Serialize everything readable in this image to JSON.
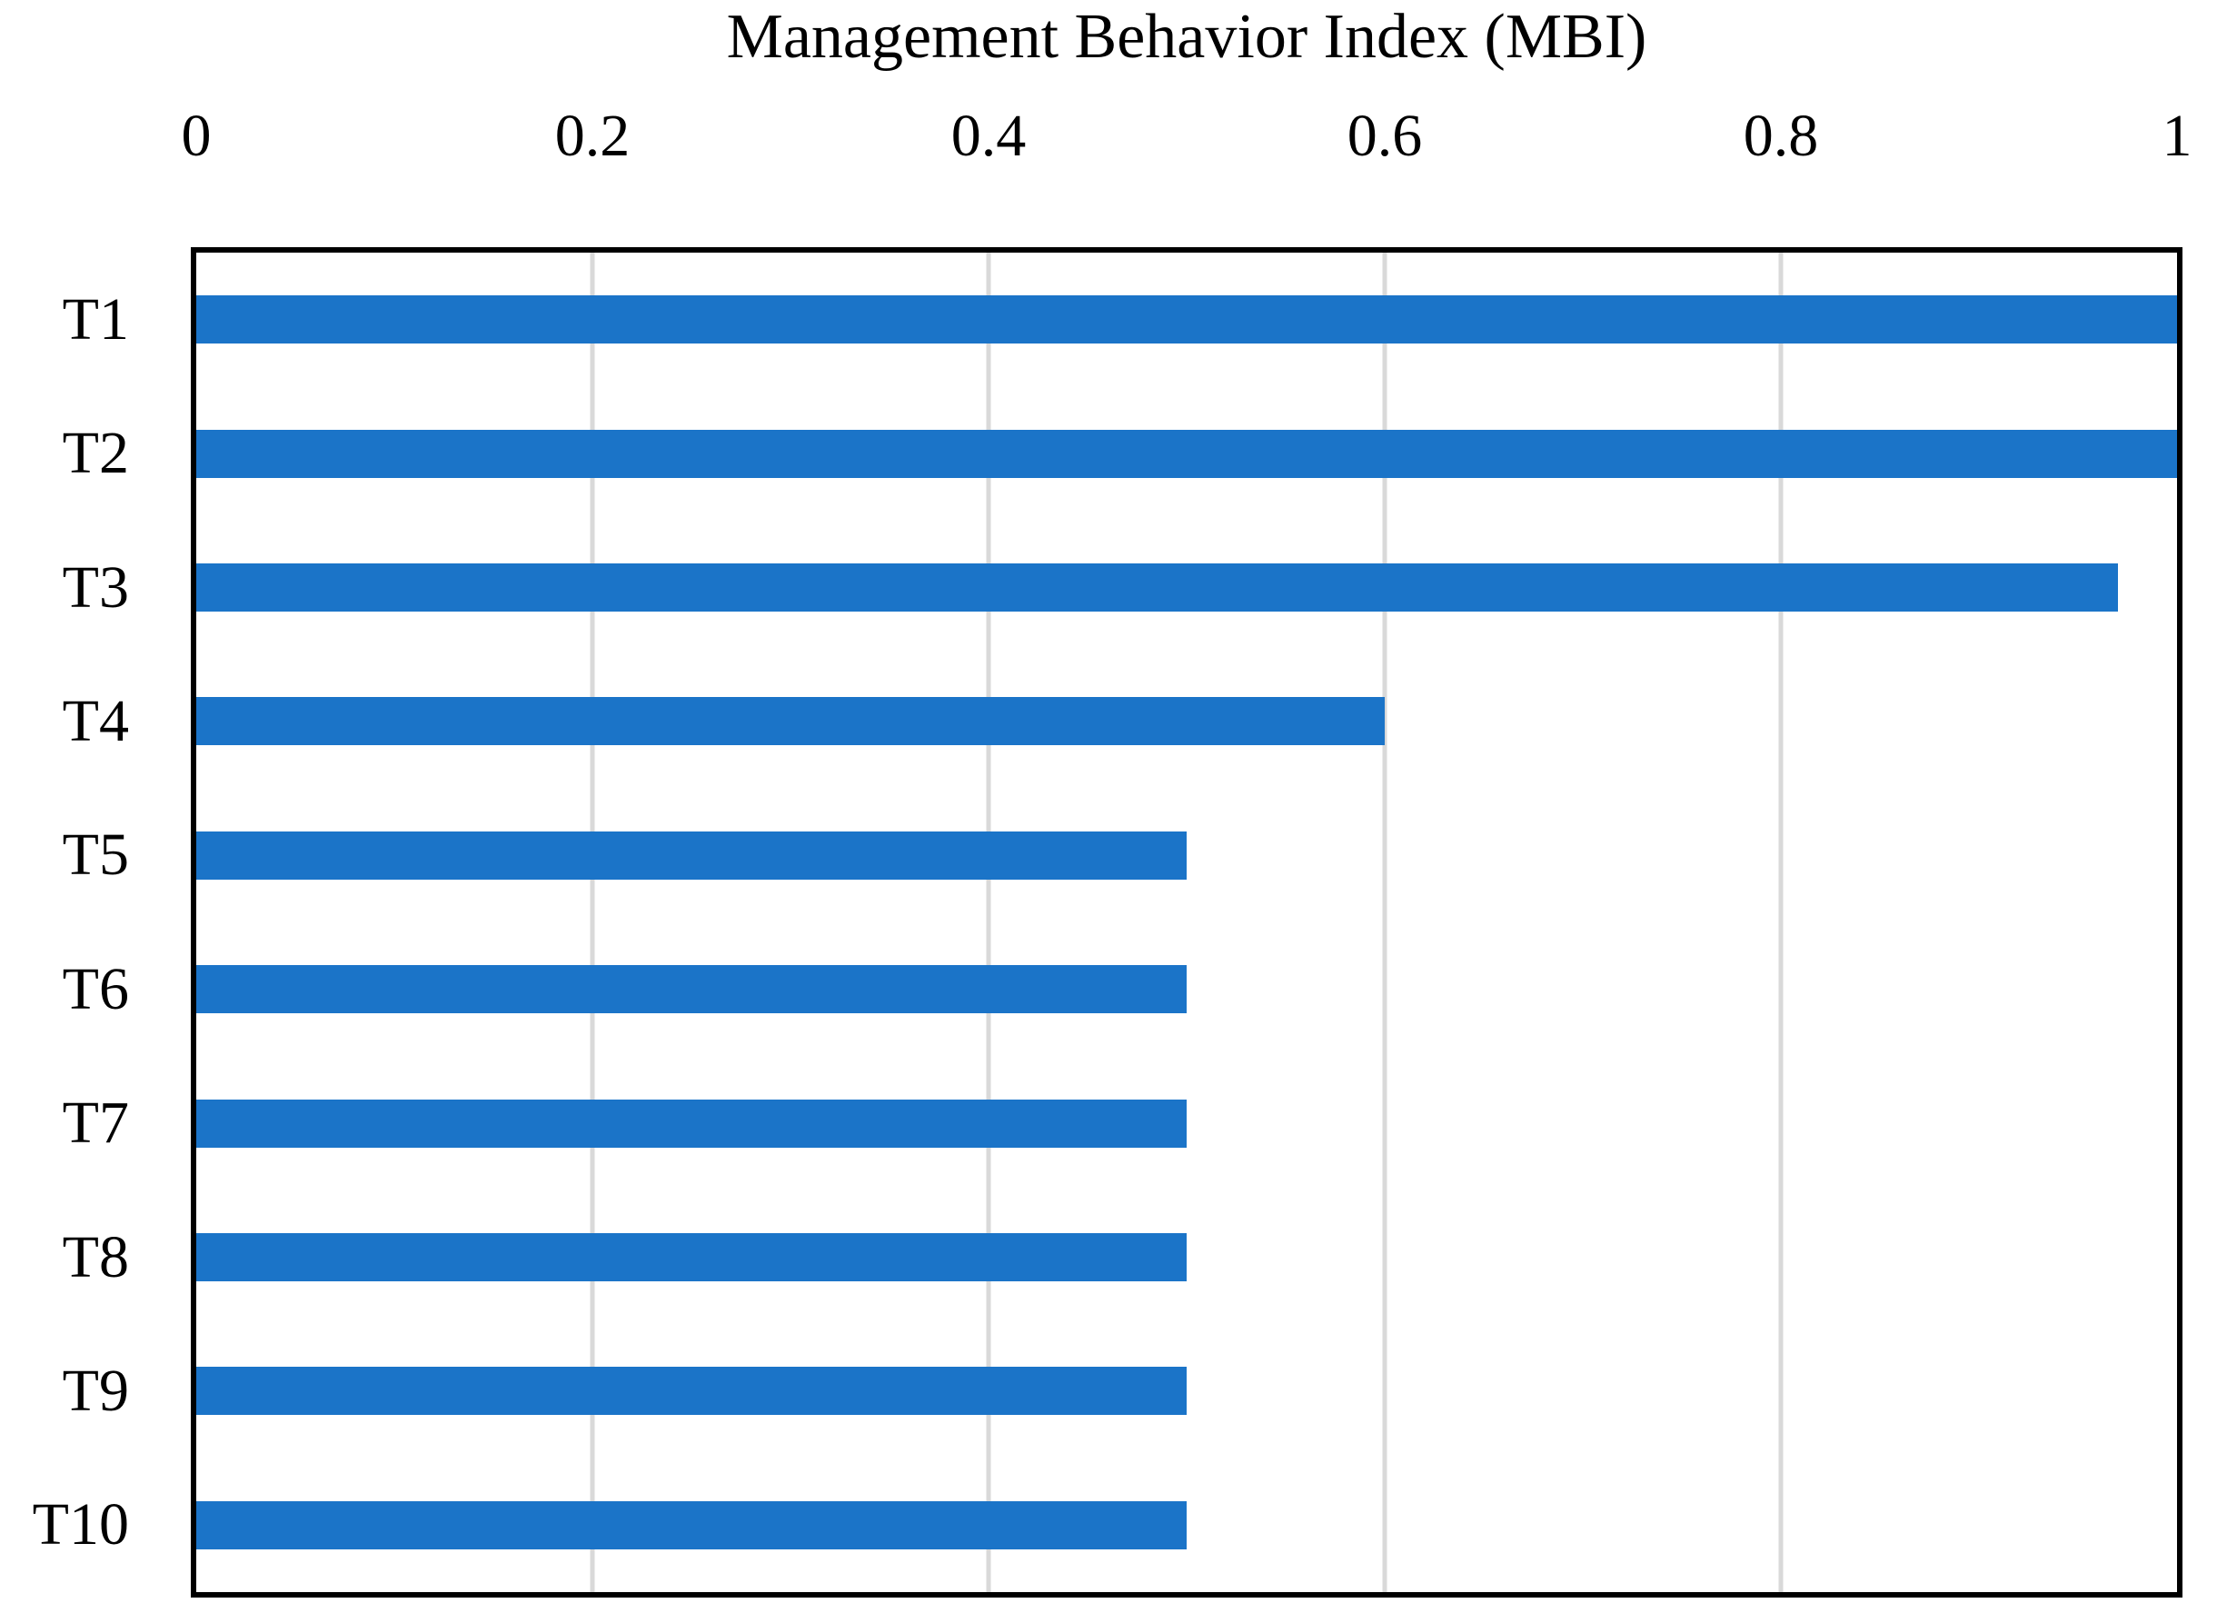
{
  "chart_data": {
    "type": "bar",
    "orientation": "horizontal",
    "title": "Management Behavior Index (MBI)",
    "categories": [
      "T1",
      "T2",
      "T3",
      "T4",
      "T5",
      "T6",
      "T7",
      "T8",
      "T9",
      "T10"
    ],
    "values": [
      1.0,
      1.0,
      0.97,
      0.6,
      0.5,
      0.5,
      0.5,
      0.5,
      0.5,
      0.5
    ],
    "xlabel": "",
    "ylabel": "",
    "xlim": [
      0,
      1
    ],
    "x_ticks": [
      {
        "value": 0,
        "label": "0"
      },
      {
        "value": 0.2,
        "label": "0.2"
      },
      {
        "value": 0.4,
        "label": "0.4"
      },
      {
        "value": 0.6,
        "label": "0.6"
      },
      {
        "value": 0.8,
        "label": "0.8"
      },
      {
        "value": 1,
        "label": "1"
      }
    ],
    "tick_label_position": "top",
    "grid": "vertical-at-ticks",
    "legend": "none",
    "colors": {
      "bar": "#1B74C8",
      "gridline": "#D9D9D9",
      "plot_border": "#000000",
      "text": "#000000",
      "background": "#FFFFFF"
    }
  }
}
